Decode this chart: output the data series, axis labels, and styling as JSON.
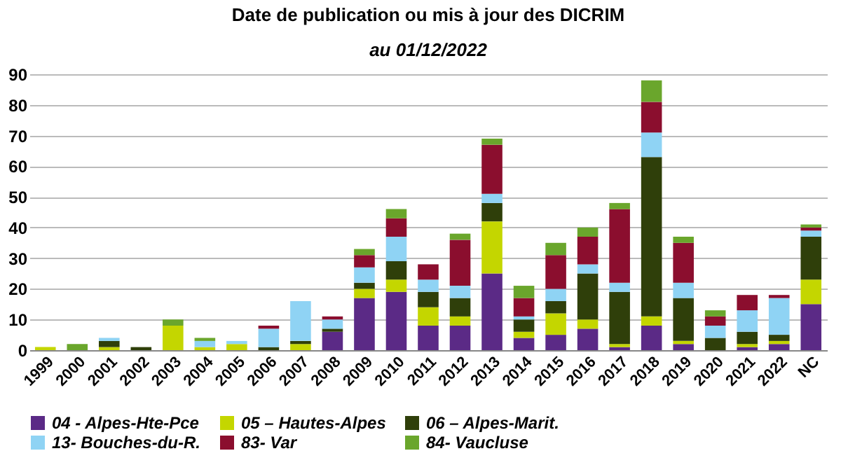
{
  "chart_data": {
    "type": "bar",
    "stacked": true,
    "title": "Date de publication ou mis à jour des DICRIM",
    "subtitle": "au 01/12/2022",
    "categories": [
      "1999",
      "2000",
      "2001",
      "2002",
      "2003",
      "2004",
      "2005",
      "2006",
      "2007",
      "2008",
      "2009",
      "2010",
      "2011",
      "2012",
      "2013",
      "2014",
      "2015",
      "2016",
      "2017",
      "2018",
      "2019",
      "2020",
      "2021",
      "2022",
      "NC"
    ],
    "series": [
      {
        "name": "04 - Alpes-Hte-Pce",
        "color": "#5b2a86",
        "values": [
          0,
          0,
          0,
          0,
          0,
          0,
          0,
          0,
          0,
          6,
          17,
          19,
          8,
          8,
          25,
          4,
          5,
          7,
          1,
          8,
          2,
          0,
          1,
          2,
          15
        ]
      },
      {
        "name": "05 – Hautes-Alpes",
        "color": "#c4d600",
        "values": [
          1,
          0,
          1,
          0,
          8,
          1,
          2,
          0,
          2,
          0,
          3,
          4,
          6,
          3,
          17,
          2,
          7,
          3,
          1,
          3,
          1,
          0,
          1,
          1,
          8
        ]
      },
      {
        "name": "06 – Alpes-Marit.",
        "color": "#2f3f0a",
        "values": [
          0,
          0,
          2,
          1,
          0,
          0,
          0,
          1,
          1,
          1,
          2,
          6,
          5,
          6,
          6,
          4,
          4,
          15,
          17,
          52,
          14,
          4,
          4,
          2,
          14
        ]
      },
      {
        "name": "13- Bouches-du-R.",
        "color": "#8fd3f4",
        "values": [
          0,
          0,
          1,
          0,
          0,
          2,
          1,
          6,
          13,
          3,
          5,
          8,
          4,
          4,
          3,
          1,
          4,
          3,
          3,
          8,
          5,
          4,
          7,
          12,
          2
        ]
      },
      {
        "name": "83- Var",
        "color": "#8b0e2e",
        "values": [
          0,
          0,
          0,
          0,
          0,
          0,
          0,
          1,
          0,
          1,
          4,
          6,
          5,
          15,
          16,
          6,
          11,
          9,
          24,
          10,
          13,
          3,
          5,
          1,
          1
        ]
      },
      {
        "name": "84- Vaucluse",
        "color": "#6aa62c",
        "values": [
          0,
          2,
          0,
          0,
          2,
          1,
          0,
          0,
          0,
          0,
          2,
          3,
          0,
          2,
          2,
          4,
          4,
          3,
          2,
          7,
          2,
          2,
          0,
          0,
          1
        ]
      }
    ],
    "ylim": [
      0,
      90
    ],
    "yticks": [
      0,
      10,
      20,
      30,
      40,
      50,
      60,
      70,
      80,
      90
    ],
    "grid": "y",
    "legend": "bottom"
  }
}
